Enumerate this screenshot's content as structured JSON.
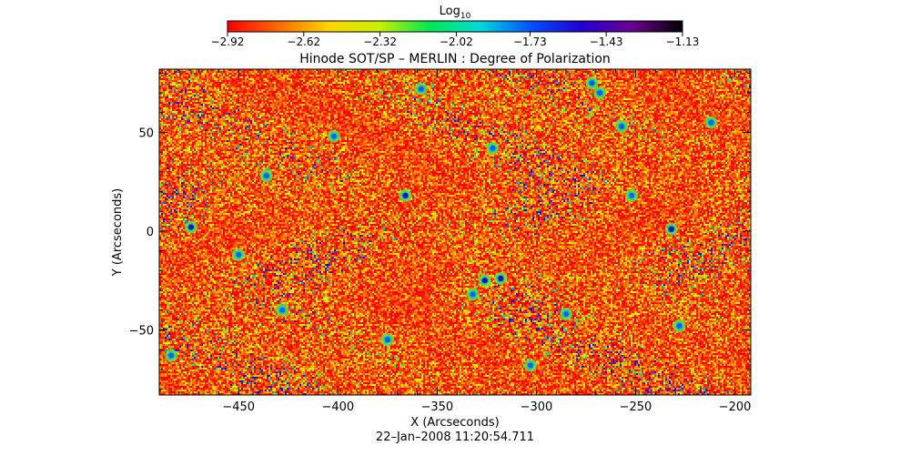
{
  "chart_data": {
    "type": "heatmap",
    "title": "Hinode SOT/SP – MERLIN : Degree of Polarization",
    "xlabel": "X (Arcseconds)",
    "ylabel": "Y (Arcseconds)",
    "timestamp": "22–Jan–2008 11:20:54.711",
    "colorbar": {
      "label_base": "Log",
      "label_sub": "10",
      "min": -2.92,
      "max": -1.13,
      "tick_values": [
        -2.92,
        -2.62,
        -2.32,
        -2.02,
        -1.73,
        -1.43,
        -1.13
      ],
      "tick_labels": [
        "−2.92",
        "−2.62",
        "−2.32",
        "−2.02",
        "−1.73",
        "−1.43",
        "−1.13"
      ],
      "colormap_stops": [
        "#ff0000",
        "#ff6a00",
        "#ffd400",
        "#c8f000",
        "#00e850",
        "#00d8d8",
        "#0050ff",
        "#2000d0",
        "#6a0090",
        "#000000"
      ]
    },
    "xlim": [
      -490,
      -192
    ],
    "ylim": [
      -83,
      82
    ],
    "x_ticks": [
      -450,
      -400,
      -350,
      -300,
      -250,
      -200
    ],
    "x_tick_labels": [
      "−450",
      "−400",
      "−350",
      "−300",
      "−250",
      "−200"
    ],
    "y_ticks": [
      -50,
      0,
      50
    ],
    "y_tick_labels": [
      "−50",
      "0",
      "50"
    ],
    "field_palette": [
      "#ff0000",
      "#ff3000",
      "#ff6200",
      "#ff8f00",
      "#ffb800",
      "#ffe000",
      "#d8f500",
      "#9ef200",
      "#40e640",
      "#00d8a8",
      "#00a8e8",
      "#1050ff",
      "#2010c0"
    ],
    "field_weights": [
      24,
      20,
      16,
      13,
      8,
      6,
      5,
      3,
      2,
      1.2,
      0.8,
      0.6,
      0.4
    ],
    "patches": [
      {
        "x": -474,
        "y": 2,
        "v": 0.82
      },
      {
        "x": -366,
        "y": 18,
        "v": 0.85
      },
      {
        "x": -318,
        "y": -24,
        "v": 0.9
      },
      {
        "x": -326,
        "y": -25,
        "v": 0.85
      },
      {
        "x": -232,
        "y": 1,
        "v": 0.88
      },
      {
        "x": -272,
        "y": 75,
        "v": 0.8
      },
      {
        "x": -268,
        "y": 70,
        "v": 0.78
      },
      {
        "x": -322,
        "y": 42,
        "v": 0.72
      },
      {
        "x": -436,
        "y": 28,
        "v": 0.72
      },
      {
        "x": -375,
        "y": -55,
        "v": 0.8
      },
      {
        "x": -332,
        "y": -32,
        "v": 0.72
      },
      {
        "x": -257,
        "y": 53,
        "v": 0.75
      },
      {
        "x": -212,
        "y": 55,
        "v": 0.7
      },
      {
        "x": -228,
        "y": -48,
        "v": 0.72
      },
      {
        "x": -285,
        "y": -42,
        "v": 0.7
      },
      {
        "x": -358,
        "y": 72,
        "v": 0.75
      },
      {
        "x": -450,
        "y": -12,
        "v": 0.65
      },
      {
        "x": -484,
        "y": -63,
        "v": 0.7
      },
      {
        "x": -303,
        "y": -68,
        "v": 0.66
      },
      {
        "x": -402,
        "y": 48,
        "v": 0.62
      },
      {
        "x": -252,
        "y": 18,
        "v": 0.6
      },
      {
        "x": -428,
        "y": -40,
        "v": 0.62
      }
    ]
  }
}
